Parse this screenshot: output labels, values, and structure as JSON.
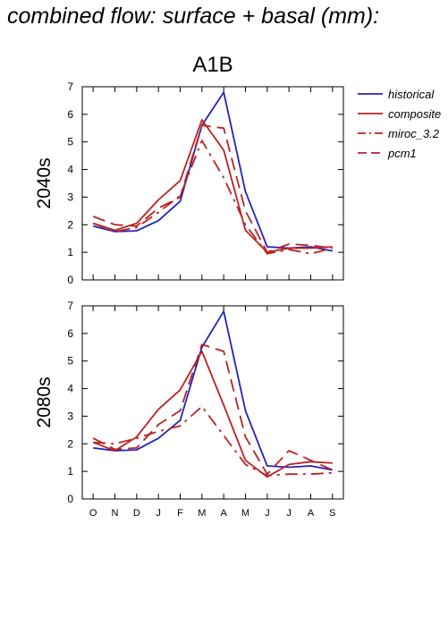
{
  "title": "combined flow: surface + basal (mm):",
  "chart_data": {
    "type": "line",
    "title": "A1B",
    "categories": [
      "O",
      "N",
      "D",
      "J",
      "F",
      "M",
      "A",
      "M",
      "J",
      "J",
      "A",
      "S"
    ],
    "ylim": [
      0,
      7
    ],
    "yticks": [
      0,
      1,
      2,
      3,
      4,
      5,
      6,
      7
    ],
    "grid": false,
    "legend_position": "right",
    "series_styles": [
      {
        "name": "historical",
        "color": "#2222bb",
        "dash": "solid"
      },
      {
        "name": "composite",
        "color": "#bb2222",
        "dash": "solid"
      },
      {
        "name": "miroc_3.2",
        "color": "#bb2222",
        "dash": "dashdot"
      },
      {
        "name": "pcm1",
        "color": "#bb2222",
        "dash": "dashed"
      }
    ],
    "panels": [
      {
        "label": "2040s",
        "series": [
          {
            "name": "historical",
            "values": [
              1.95,
              1.75,
              1.78,
              2.15,
              2.85,
              5.6,
              6.8,
              3.2,
              1.2,
              1.15,
              1.2,
              1.05
            ]
          },
          {
            "name": "composite",
            "values": [
              2.05,
              1.8,
              2.05,
              2.9,
              3.6,
              5.8,
              4.7,
              1.8,
              1.0,
              1.15,
              1.15,
              1.2
            ]
          },
          {
            "name": "miroc_3.2",
            "values": [
              2.05,
              1.75,
              1.9,
              2.45,
              3.05,
              5.05,
              3.7,
              2.0,
              0.95,
              1.1,
              0.95,
              1.15
            ]
          },
          {
            "name": "pcm1",
            "values": [
              2.3,
              2.0,
              1.95,
              2.6,
              3.0,
              5.6,
              5.5,
              2.5,
              1.0,
              1.3,
              1.25,
              1.15
            ]
          }
        ]
      },
      {
        "label": "2080s",
        "series": [
          {
            "name": "historical",
            "values": [
              1.85,
              1.75,
              1.78,
              2.2,
              2.85,
              5.5,
              6.8,
              3.2,
              1.2,
              1.15,
              1.2,
              1.05
            ]
          },
          {
            "name": "composite",
            "values": [
              2.05,
              1.75,
              2.25,
              3.25,
              3.95,
              5.35,
              3.4,
              1.4,
              0.8,
              1.25,
              1.35,
              1.3
            ]
          },
          {
            "name": "miroc_3.2",
            "values": [
              2.05,
              2.0,
              2.2,
              2.45,
              2.65,
              3.35,
              2.3,
              1.25,
              0.85,
              0.9,
              0.9,
              0.95
            ]
          },
          {
            "name": "pcm1",
            "values": [
              2.2,
              1.8,
              1.85,
              2.7,
              3.2,
              5.6,
              5.35,
              2.25,
              0.9,
              1.75,
              1.4,
              1.05
            ]
          }
        ]
      }
    ]
  }
}
